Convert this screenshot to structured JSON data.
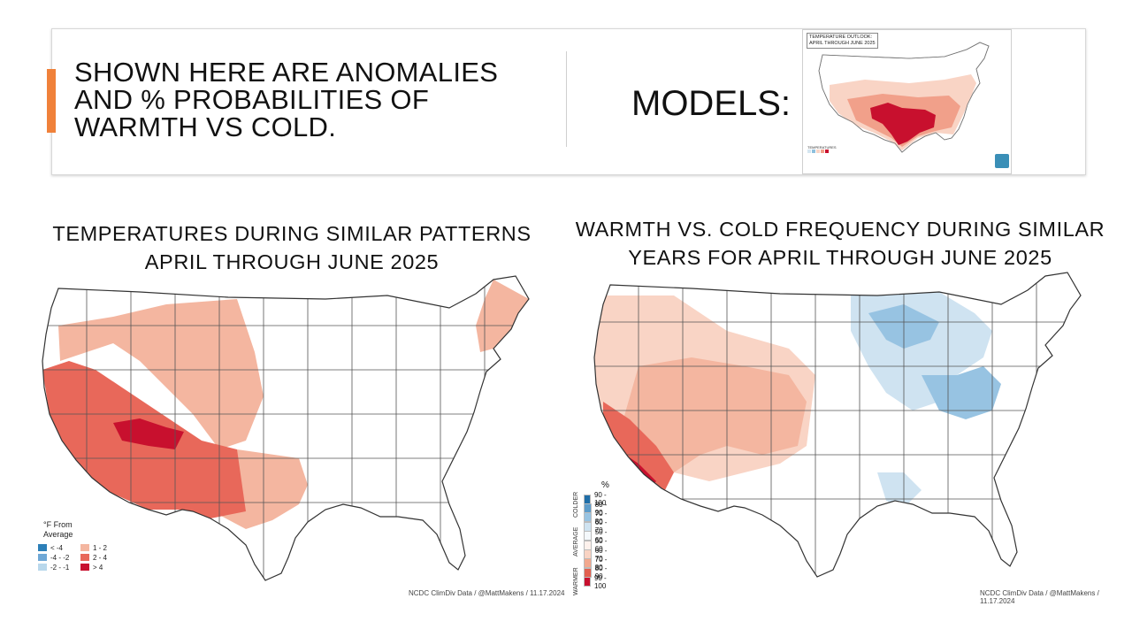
{
  "header": {
    "headline_lines": [
      "SHOWN HERE ARE ANOMALIES",
      "AND % PROBABILITIES OF",
      "WARMTH VS COLD."
    ],
    "models_label": "MODELS:",
    "accent_color": "#f0813a"
  },
  "outlook_thumbnail": {
    "title_lines": [
      "TEMPERATURE OUTLOOK:",
      "APRIL THROUGH JUNE 2025"
    ],
    "legend_label": "TEMPERATURES",
    "colors": [
      "#d5e6f1",
      "#8fc0dd",
      "#f9d4c5",
      "#f1a08a",
      "#c8102e"
    ]
  },
  "left_panel": {
    "title_lines": [
      "TEMPERATURES DURING SIMILAR PATTERNS",
      "APRIL THROUGH JUNE 2025"
    ],
    "legend": {
      "title_lines": [
        "°F From",
        "Average"
      ],
      "items": [
        {
          "label": "< -4",
          "color": "#2c7fb8"
        },
        {
          "label": "1 - 2",
          "color": "#f4b6a0"
        },
        {
          "label": "-4 - -2",
          "color": "#6fa8d6"
        },
        {
          "label": "2 - 4",
          "color": "#e8685a"
        },
        {
          "label": "-2 - -1",
          "color": "#b9d8ec"
        },
        {
          "label": "> 4",
          "color": "#c8102e"
        }
      ]
    },
    "credit": "NCDC ClimDiv Data / @MattMakens / 11.17.2024"
  },
  "right_panel": {
    "title_lines": [
      "WARMTH VS. COLD FREQUENCY DURING SIMILAR",
      "YEARS FOR APRIL THROUGH JUNE 2025"
    ],
    "legend": {
      "unit": "%",
      "side_labels": [
        "COLDER",
        "AVERAGE",
        "WARMER"
      ],
      "items": [
        {
          "label": "90 - 100",
          "color": "#1f6ea8"
        },
        {
          "label": "80 - 90",
          "color": "#5d9cca"
        },
        {
          "label": "70 - 80",
          "color": "#97c3e2"
        },
        {
          "label": "60 - 70",
          "color": "#cfe3f1"
        },
        {
          "label": "50 - 60",
          "color": "#f4f8fb"
        },
        {
          "label": "50 - 60",
          "color": "#fdf1ec"
        },
        {
          "label": "60 - 70",
          "color": "#f9d3c3"
        },
        {
          "label": "70 - 80",
          "color": "#f2a88e"
        },
        {
          "label": "80 - 90",
          "color": "#e2604f"
        },
        {
          "label": "90 - 100",
          "color": "#c8102e"
        }
      ]
    },
    "credit": "NCDC ClimDiv Data / @MattMakens / 11.17.2024"
  },
  "map_colors": {
    "land": "#ffffff",
    "border": "#444444",
    "light_warm": "#f4b6a0",
    "mid_warm": "#e8685a",
    "hot": "#c8102e",
    "pale_warm": "#f9d4c5",
    "cool_light": "#cfe3f1",
    "cool_mid": "#97c3e2",
    "cool_deep": "#5d9cca"
  }
}
